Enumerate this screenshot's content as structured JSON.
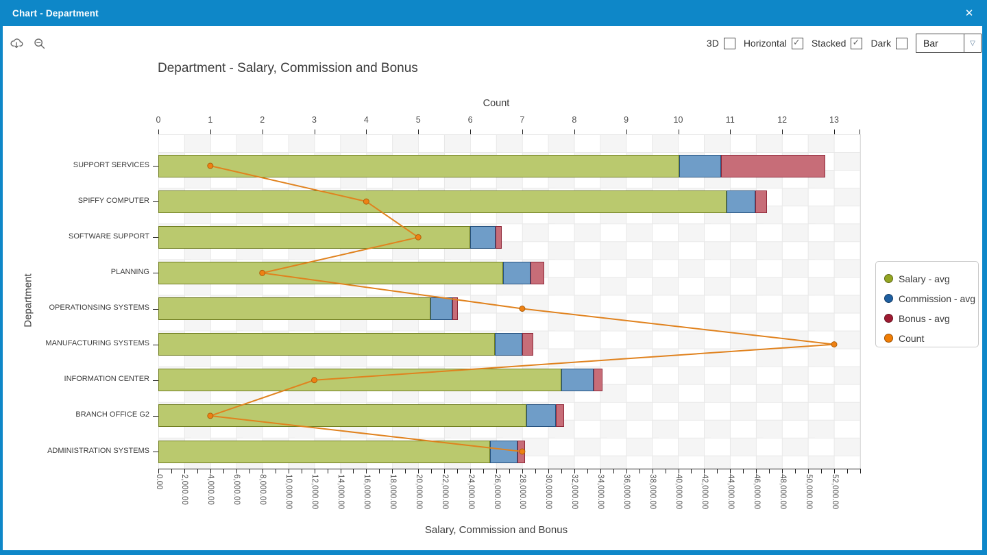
{
  "window": {
    "title": "Chart - Department",
    "close_icon": "✕"
  },
  "toolbar": {
    "icons": [
      {
        "name": "cloud-download-icon"
      },
      {
        "name": "zoom-out-icon"
      }
    ],
    "checkboxes": [
      {
        "label": "3D",
        "checked": false
      },
      {
        "label": "Horizontal",
        "checked": true
      },
      {
        "label": "Stacked",
        "checked": true
      },
      {
        "label": "Dark",
        "checked": false
      }
    ],
    "chart_type": {
      "value": "Bar",
      "chevron_icon": "▽"
    }
  },
  "chart_data": {
    "type": "bar",
    "orientation": "horizontal",
    "stacked": true,
    "title": "Department - Salary, Commission and Bonus",
    "categories": [
      "SUPPORT SERVICES",
      "SPIFFY COMPUTER",
      "SOFTWARE SUPPORT",
      "PLANNING",
      "OPERATIONSING SYSTEMS",
      "MANUFACTURING SYSTEMS",
      "INFORMATION CENTER",
      "BRANCH OFFICE G2",
      "ADMINISTRATION SYSTEMS"
    ],
    "series": [
      {
        "name": "Salary - avg",
        "type": "bar",
        "fill": "#bac96e",
        "border": "#6f7d1f",
        "legend_color": "#93a523",
        "values": [
          40100,
          43700,
          24000,
          26500,
          20950,
          25900,
          31000,
          28300,
          25500
        ]
      },
      {
        "name": "Commission - avg",
        "type": "bar",
        "fill": "#6f9dc8",
        "border": "#25517e",
        "legend_color": "#1f5fa0",
        "values": [
          3200,
          2230,
          1950,
          2110,
          1690,
          2110,
          2480,
          2270,
          2110
        ]
      },
      {
        "name": "Bonus - avg",
        "type": "bar",
        "fill": "#c76d78",
        "border": "#8e2738",
        "legend_color": "#9e1b32",
        "values": [
          8020,
          900,
          480,
          1100,
          420,
          850,
          690,
          630,
          580
        ]
      },
      {
        "name": "Count",
        "type": "line",
        "axis": "top",
        "line_color": "#e0821e",
        "point_fill": "#ee8113",
        "point_border": "#ad5f0b",
        "legend_color": "#f07d05",
        "values": [
          1,
          4,
          5,
          2,
          7,
          13,
          3,
          1,
          7
        ]
      }
    ],
    "top_axis": {
      "label": "Count",
      "min": 0,
      "max": 13.5,
      "tick_values": [
        0,
        1,
        2,
        3,
        4,
        5,
        6,
        7,
        8,
        9,
        10,
        11,
        12,
        13
      ]
    },
    "bottom_axis": {
      "label": "Salary, Commission and Bonus",
      "min": 0,
      "max": 54000,
      "major_step": 2000,
      "minor_step": 1000,
      "tick_labels": [
        "0.00",
        "2,000.00",
        "4,000.00",
        "6,000.00",
        "8,000.00",
        "10,000.00",
        "12,000.00",
        "14,000.00",
        "16,000.00",
        "18,000.00",
        "20,000.00",
        "22,000.00",
        "24,000.00",
        "26,000.00",
        "28,000.00",
        "30,000.00",
        "32,000.00",
        "34,000.00",
        "36,000.00",
        "38,000.00",
        "40,000.00",
        "42,000.00",
        "44,000.00",
        "46,000.00",
        "48,000.00",
        "50,000.00",
        "52,000.00"
      ]
    },
    "left_axis": {
      "label": "Department"
    },
    "legend": {
      "position": "right",
      "entries": [
        {
          "label": "Salary - avg",
          "color": "#93a523"
        },
        {
          "label": "Commission - avg",
          "color": "#1f5fa0"
        },
        {
          "label": "Bonus - avg",
          "color": "#9e1b32"
        },
        {
          "label": "Count",
          "color": "#f07d05"
        }
      ]
    },
    "theme": {
      "titlebar": "#0e87c8",
      "checker": "#f5f5f5",
      "grid": "#e8e8e8",
      "plot_bg": "#ffffff"
    }
  }
}
